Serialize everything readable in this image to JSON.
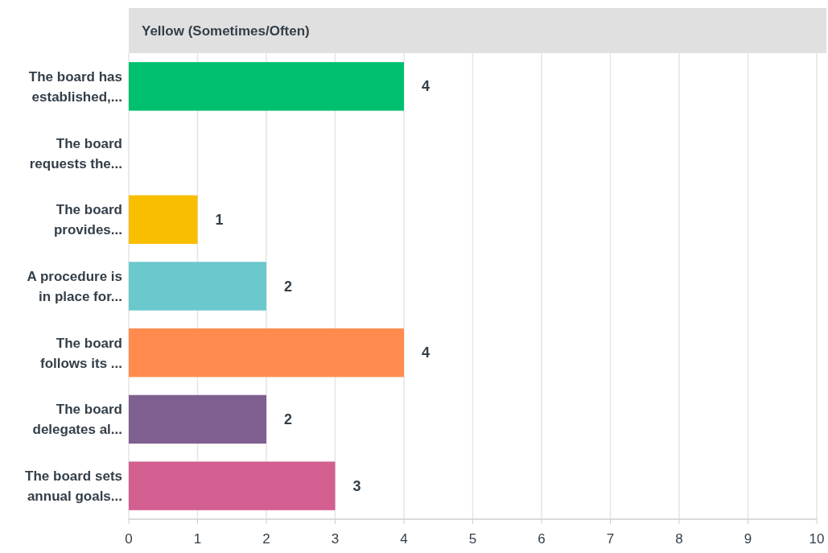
{
  "chart_data": {
    "type": "bar",
    "orientation": "horizontal",
    "title": "Yellow (Sometimes/Often)",
    "categories": [
      "The board has established,...",
      "The board requests the...",
      "The board provides...",
      "A procedure is in place for...",
      "The board follows its ...",
      "The board delegates al...",
      "The board sets annual goals..."
    ],
    "values": [
      4,
      0,
      1,
      2,
      4,
      2,
      3
    ],
    "colors": [
      "#00bf6f",
      "#507cb6",
      "#f9be00",
      "#6bc8cd",
      "#ff8b4f",
      "#7f5f8f",
      "#d25f90"
    ],
    "value_labels": [
      "4",
      null,
      "1",
      "2",
      "4",
      "2",
      "3"
    ],
    "xlim": [
      0,
      10
    ],
    "xticks": [
      0,
      1,
      2,
      3,
      4,
      5,
      6,
      7,
      8,
      9,
      10
    ],
    "grid": "x"
  }
}
